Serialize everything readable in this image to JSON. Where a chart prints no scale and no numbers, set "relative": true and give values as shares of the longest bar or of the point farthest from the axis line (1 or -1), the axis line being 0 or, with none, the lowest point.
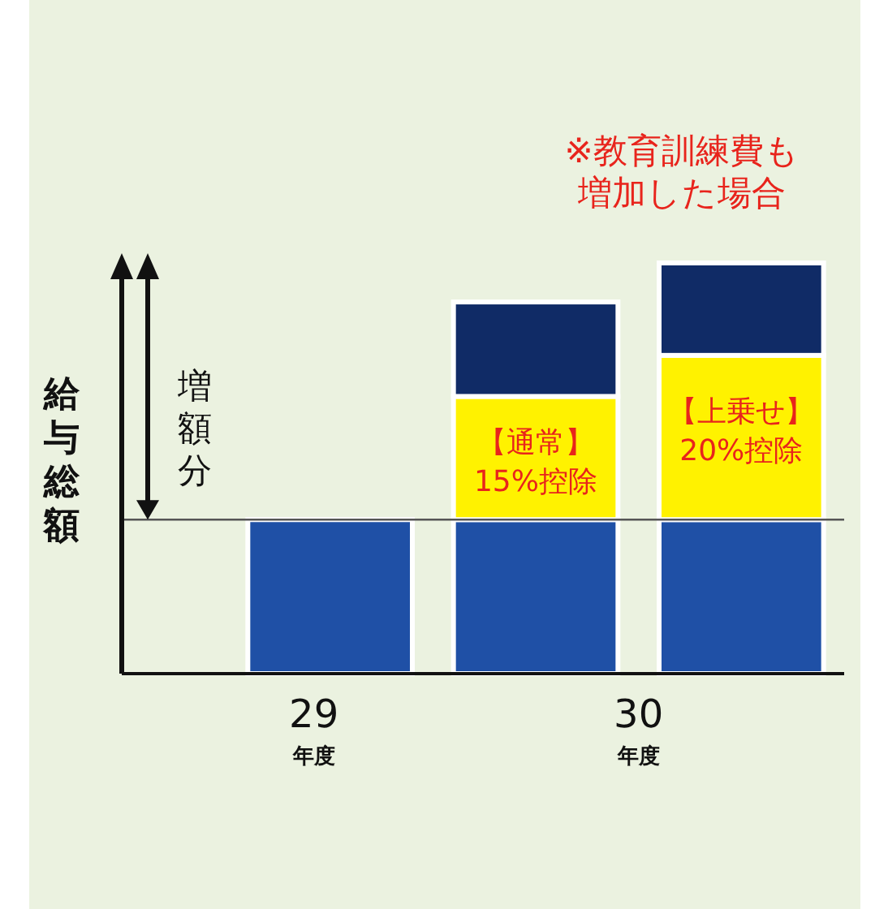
{
  "chart_data": {
    "type": "bar",
    "relative": true,
    "stacked": true,
    "ylabel": "給与総額",
    "categories": [
      "29$_{年度}$",
      null,
      null
    ],
    "series": [
      {
        "color": "#1f50a6",
        "values": [
          0.375,
          0.375,
          0.375
        ]
      },
      {
        "color": "#fff200",
        "values": [
          null,
          0.3,
          0.4
        ]
      },
      {
        "color": "#102b66",
        "values": [
          null,
          0.23,
          0.225
        ]
      }
    ],
    "ref_lines": [
      {
        "axis": "y",
        "value": 0.375,
        "color": "#555555"
      }
    ],
    "annotations": [
      "※教育訓練費も増加した場合",
      "【通常】\n15%控除",
      "【上乗せ】\n20%控除",
      "30$_{年度}$",
      "増額分"
    ]
  }
}
